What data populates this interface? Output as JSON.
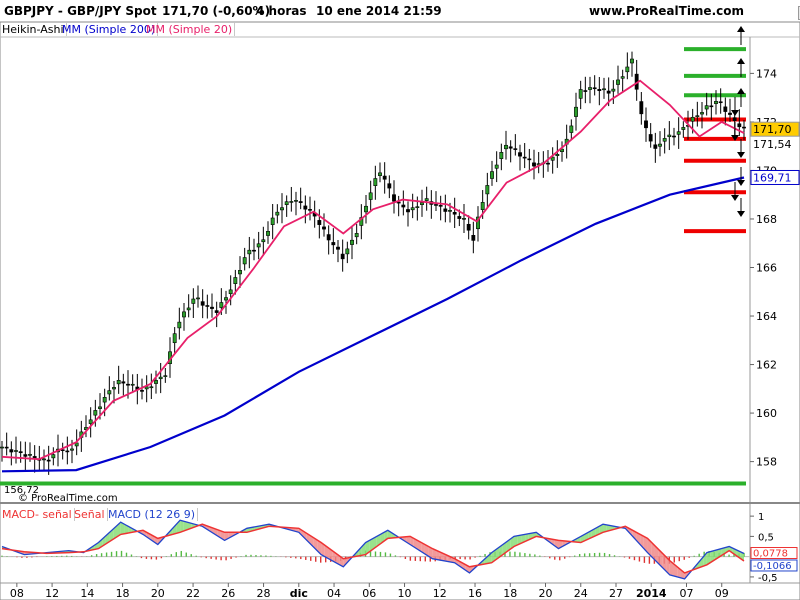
{
  "header": {
    "symbol": "GBPJPY - GBP/JPY Spot",
    "quote": "171,70 (-0,60%)",
    "timeframe": "4 horas",
    "datetime": "10 ene 2014 21:59",
    "site": "www.ProRealTime.com"
  },
  "window_icons": [
    "minimize-icon",
    "restore-icon",
    "close-icon"
  ],
  "legend": {
    "price": [
      "Heikin-Ashi",
      "MM (Simple 200)",
      "MM (Simple 20)"
    ],
    "macd": [
      "MACD- señal",
      "Señal",
      "MACD (12 26 9)"
    ]
  },
  "watermark": "© ProRealTime.com",
  "low_label": "156,72",
  "colors": {
    "candle": "#000000",
    "bull_body": "#2a9d2a",
    "ma200": "#0000cc",
    "ma20": "#e8206a",
    "level_green": "#2bb02b",
    "level_red": "#ee0000",
    "macd_line": "#2244cc",
    "signal_line": "#ee3333",
    "hist_up": "#55bb44",
    "hist_down": "#dd3333"
  },
  "chart_data": [
    {
      "type": "candlestick",
      "style": "heikin-ashi",
      "x_ticks": [
        "08",
        "12",
        "14",
        "18",
        "20",
        "22",
        "26",
        "28",
        "dic",
        "04",
        "06",
        "10",
        "12",
        "16",
        "18",
        "20",
        "24",
        "27",
        "2014",
        "07",
        "09"
      ],
      "y_ticks": [
        158,
        160,
        162,
        164,
        166,
        168,
        170,
        172,
        174
      ],
      "ylim": [
        156.5,
        175.5
      ],
      "close_path": [
        [
          0,
          158.6
        ],
        [
          0.03,
          158.3
        ],
        [
          0.06,
          158.0
        ],
        [
          0.08,
          158.6
        ],
        [
          0.09,
          158.3
        ],
        [
          0.11,
          159.3
        ],
        [
          0.14,
          160.7
        ],
        [
          0.155,
          161.3
        ],
        [
          0.17,
          161.2
        ],
        [
          0.19,
          160.9
        ],
        [
          0.22,
          161.6
        ],
        [
          0.235,
          163.6
        ],
        [
          0.26,
          164.8
        ],
        [
          0.275,
          164.4
        ],
        [
          0.29,
          164.2
        ],
        [
          0.31,
          165.2
        ],
        [
          0.33,
          166.6
        ],
        [
          0.35,
          167.0
        ],
        [
          0.37,
          168.3
        ],
        [
          0.39,
          168.8
        ],
        [
          0.4,
          168.7
        ],
        [
          0.42,
          168.2
        ],
        [
          0.44,
          167.2
        ],
        [
          0.46,
          166.4
        ],
        [
          0.48,
          167.6
        ],
        [
          0.5,
          169.4
        ],
        [
          0.51,
          170.0
        ],
        [
          0.53,
          168.7
        ],
        [
          0.55,
          168.3
        ],
        [
          0.57,
          168.8
        ],
        [
          0.59,
          168.5
        ],
        [
          0.61,
          168.2
        ],
        [
          0.625,
          167.9
        ],
        [
          0.635,
          167.1
        ],
        [
          0.645,
          168.5
        ],
        [
          0.66,
          169.9
        ],
        [
          0.68,
          171.1
        ],
        [
          0.7,
          170.6
        ],
        [
          0.72,
          170.2
        ],
        [
          0.74,
          170.4
        ],
        [
          0.76,
          171.1
        ],
        [
          0.78,
          173.3
        ],
        [
          0.8,
          173.4
        ],
        [
          0.82,
          173.2
        ],
        [
          0.84,
          174.1
        ],
        [
          0.85,
          174.6
        ],
        [
          0.86,
          172.4
        ],
        [
          0.88,
          170.8
        ],
        [
          0.89,
          171.3
        ],
        [
          0.91,
          171.5
        ],
        [
          0.93,
          172.1
        ],
        [
          0.95,
          172.6
        ],
        [
          0.965,
          172.9
        ],
        [
          0.985,
          172.1
        ],
        [
          1.0,
          171.7
        ]
      ],
      "last_price": "171,70",
      "price_labels": [
        "171,54",
        "169,71"
      ],
      "period_low": 156.72
    },
    {
      "type": "line",
      "name": "MM (Simple 200)",
      "points": [
        [
          0,
          157.6
        ],
        [
          0.1,
          157.65
        ],
        [
          0.2,
          158.6
        ],
        [
          0.3,
          159.9
        ],
        [
          0.4,
          161.7
        ],
        [
          0.5,
          163.2
        ],
        [
          0.6,
          164.7
        ],
        [
          0.7,
          166.3
        ],
        [
          0.8,
          167.8
        ],
        [
          0.9,
          169.0
        ],
        [
          1.0,
          169.71
        ]
      ]
    },
    {
      "type": "line",
      "name": "MM (Simple 20)",
      "points": [
        [
          0,
          158.2
        ],
        [
          0.05,
          158.1
        ],
        [
          0.1,
          158.8
        ],
        [
          0.15,
          160.5
        ],
        [
          0.2,
          161.2
        ],
        [
          0.25,
          163.1
        ],
        [
          0.29,
          164.0
        ],
        [
          0.34,
          166.0
        ],
        [
          0.38,
          167.7
        ],
        [
          0.42,
          168.3
        ],
        [
          0.46,
          167.4
        ],
        [
          0.5,
          168.4
        ],
        [
          0.54,
          168.8
        ],
        [
          0.6,
          168.6
        ],
        [
          0.64,
          167.9
        ],
        [
          0.68,
          169.5
        ],
        [
          0.73,
          170.3
        ],
        [
          0.78,
          171.6
        ],
        [
          0.82,
          172.9
        ],
        [
          0.86,
          173.7
        ],
        [
          0.9,
          172.7
        ],
        [
          0.94,
          171.4
        ],
        [
          0.97,
          172.0
        ],
        [
          1.0,
          171.54
        ]
      ]
    },
    {
      "type": "hlines",
      "name": "levels",
      "green": [
        175.0,
        173.9,
        173.1,
        157.1
      ],
      "red": [
        172.1,
        171.3,
        170.4,
        169.1,
        167.5
      ]
    },
    {
      "type": "macd",
      "y_ticks": [
        "1",
        "0,5",
        "-0,5"
      ],
      "ylim": [
        -0.65,
        1.25
      ],
      "value_labels": [
        "0,0778",
        "-0,1066"
      ],
      "macd_path": [
        [
          0,
          0.25
        ],
        [
          0.03,
          0.05
        ],
        [
          0.06,
          0.1
        ],
        [
          0.09,
          0.15
        ],
        [
          0.11,
          0.1
        ],
        [
          0.13,
          0.35
        ],
        [
          0.16,
          0.85
        ],
        [
          0.19,
          0.55
        ],
        [
          0.21,
          0.3
        ],
        [
          0.24,
          0.9
        ],
        [
          0.27,
          0.75
        ],
        [
          0.3,
          0.4
        ],
        [
          0.33,
          0.7
        ],
        [
          0.36,
          0.8
        ],
        [
          0.4,
          0.6
        ],
        [
          0.43,
          0.05
        ],
        [
          0.46,
          -0.25
        ],
        [
          0.49,
          0.35
        ],
        [
          0.52,
          0.65
        ],
        [
          0.55,
          0.3
        ],
        [
          0.58,
          -0.05
        ],
        [
          0.61,
          -0.15
        ],
        [
          0.63,
          -0.4
        ],
        [
          0.66,
          0.1
        ],
        [
          0.69,
          0.5
        ],
        [
          0.72,
          0.6
        ],
        [
          0.75,
          0.2
        ],
        [
          0.78,
          0.5
        ],
        [
          0.81,
          0.8
        ],
        [
          0.84,
          0.7
        ],
        [
          0.87,
          0.1
        ],
        [
          0.9,
          -0.45
        ],
        [
          0.92,
          -0.55
        ],
        [
          0.95,
          0.1
        ],
        [
          0.98,
          0.25
        ],
        [
          1.0,
          0.0778
        ]
      ],
      "signal_path": [
        [
          0,
          0.2
        ],
        [
          0.03,
          0.12
        ],
        [
          0.06,
          0.08
        ],
        [
          0.09,
          0.1
        ],
        [
          0.11,
          0.12
        ],
        [
          0.13,
          0.2
        ],
        [
          0.16,
          0.55
        ],
        [
          0.19,
          0.65
        ],
        [
          0.21,
          0.45
        ],
        [
          0.24,
          0.6
        ],
        [
          0.27,
          0.8
        ],
        [
          0.3,
          0.6
        ],
        [
          0.33,
          0.6
        ],
        [
          0.36,
          0.75
        ],
        [
          0.4,
          0.7
        ],
        [
          0.43,
          0.35
        ],
        [
          0.46,
          -0.05
        ],
        [
          0.49,
          0.05
        ],
        [
          0.52,
          0.45
        ],
        [
          0.55,
          0.5
        ],
        [
          0.58,
          0.2
        ],
        [
          0.61,
          -0.05
        ],
        [
          0.63,
          -0.25
        ],
        [
          0.66,
          -0.15
        ],
        [
          0.69,
          0.25
        ],
        [
          0.72,
          0.5
        ],
        [
          0.75,
          0.4
        ],
        [
          0.78,
          0.35
        ],
        [
          0.81,
          0.6
        ],
        [
          0.84,
          0.75
        ],
        [
          0.87,
          0.45
        ],
        [
          0.9,
          -0.1
        ],
        [
          0.92,
          -0.4
        ],
        [
          0.95,
          -0.2
        ],
        [
          0.98,
          0.15
        ],
        [
          1.0,
          -0.1066
        ]
      ]
    }
  ]
}
